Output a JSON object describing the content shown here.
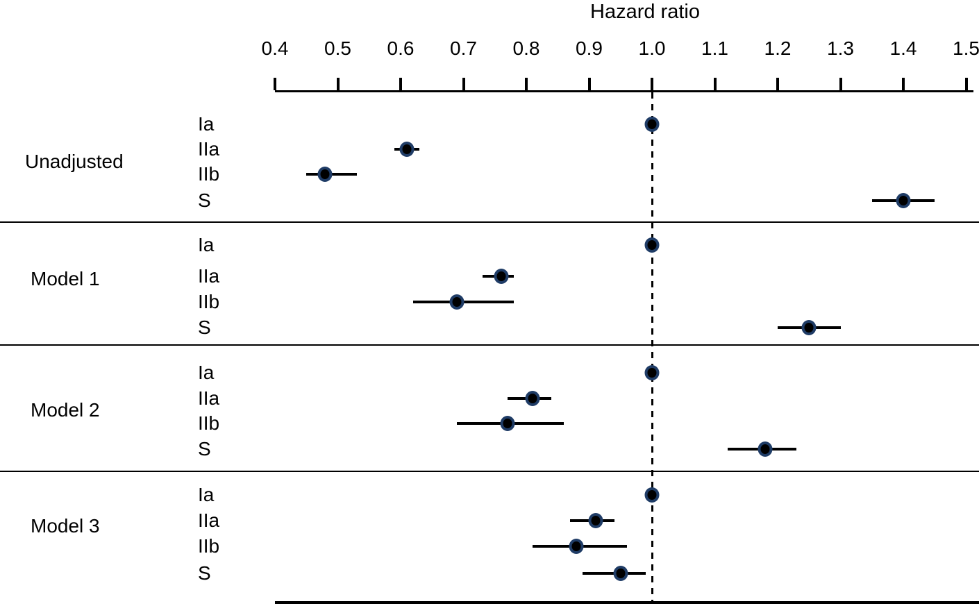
{
  "chart_data": {
    "type": "forest",
    "title": "Hazard ratio",
    "axis": {
      "min": 0.4,
      "max": 1.5,
      "step": 0.1,
      "tick_labels": [
        "0.4",
        "0.5",
        "0.6",
        "0.7",
        "0.8",
        "0.9",
        "1.0",
        "1.1",
        "1.2",
        "1.3",
        "1.4",
        "1.5"
      ],
      "grid": false
    },
    "reference_line": 1.0,
    "groups": [
      {
        "label": "Unadjusted",
        "rows": [
          {
            "label": "Ia",
            "hr": 1.0,
            "lo": 1.0,
            "hi": 1.0,
            "reference": true
          },
          {
            "label": "IIa",
            "hr": 0.61,
            "lo": 0.59,
            "hi": 0.63
          },
          {
            "label": "IIb",
            "hr": 0.48,
            "lo": 0.45,
            "hi": 0.53
          },
          {
            "label": "S",
            "hr": 1.4,
            "lo": 1.35,
            "hi": 1.45
          }
        ]
      },
      {
        "label": "Model 1",
        "rows": [
          {
            "label": "Ia",
            "hr": 1.0,
            "lo": 1.0,
            "hi": 1.0,
            "reference": true
          },
          {
            "label": "IIa",
            "hr": 0.76,
            "lo": 0.73,
            "hi": 0.78
          },
          {
            "label": "IIb",
            "hr": 0.69,
            "lo": 0.62,
            "hi": 0.78
          },
          {
            "label": "S",
            "hr": 1.25,
            "lo": 1.2,
            "hi": 1.3
          }
        ]
      },
      {
        "label": "Model 2",
        "rows": [
          {
            "label": "Ia",
            "hr": 1.0,
            "lo": 1.0,
            "hi": 1.0,
            "reference": true
          },
          {
            "label": "IIa",
            "hr": 0.81,
            "lo": 0.77,
            "hi": 0.84
          },
          {
            "label": "IIb",
            "hr": 0.77,
            "lo": 0.69,
            "hi": 0.86
          },
          {
            "label": "S",
            "hr": 1.18,
            "lo": 1.12,
            "hi": 1.23
          }
        ]
      },
      {
        "label": "Model 3",
        "rows": [
          {
            "label": "Ia",
            "hr": 1.0,
            "lo": 1.0,
            "hi": 1.0,
            "reference": true
          },
          {
            "label": "IIa",
            "hr": 0.91,
            "lo": 0.87,
            "hi": 0.94
          },
          {
            "label": "IIb",
            "hr": 0.88,
            "lo": 0.81,
            "hi": 0.96
          },
          {
            "label": "S",
            "hr": 0.95,
            "lo": 0.89,
            "hi": 0.99
          }
        ]
      }
    ],
    "colors": {
      "marker_core": "#000000",
      "marker_ring": "#1f3c66",
      "line": "#000000"
    }
  }
}
